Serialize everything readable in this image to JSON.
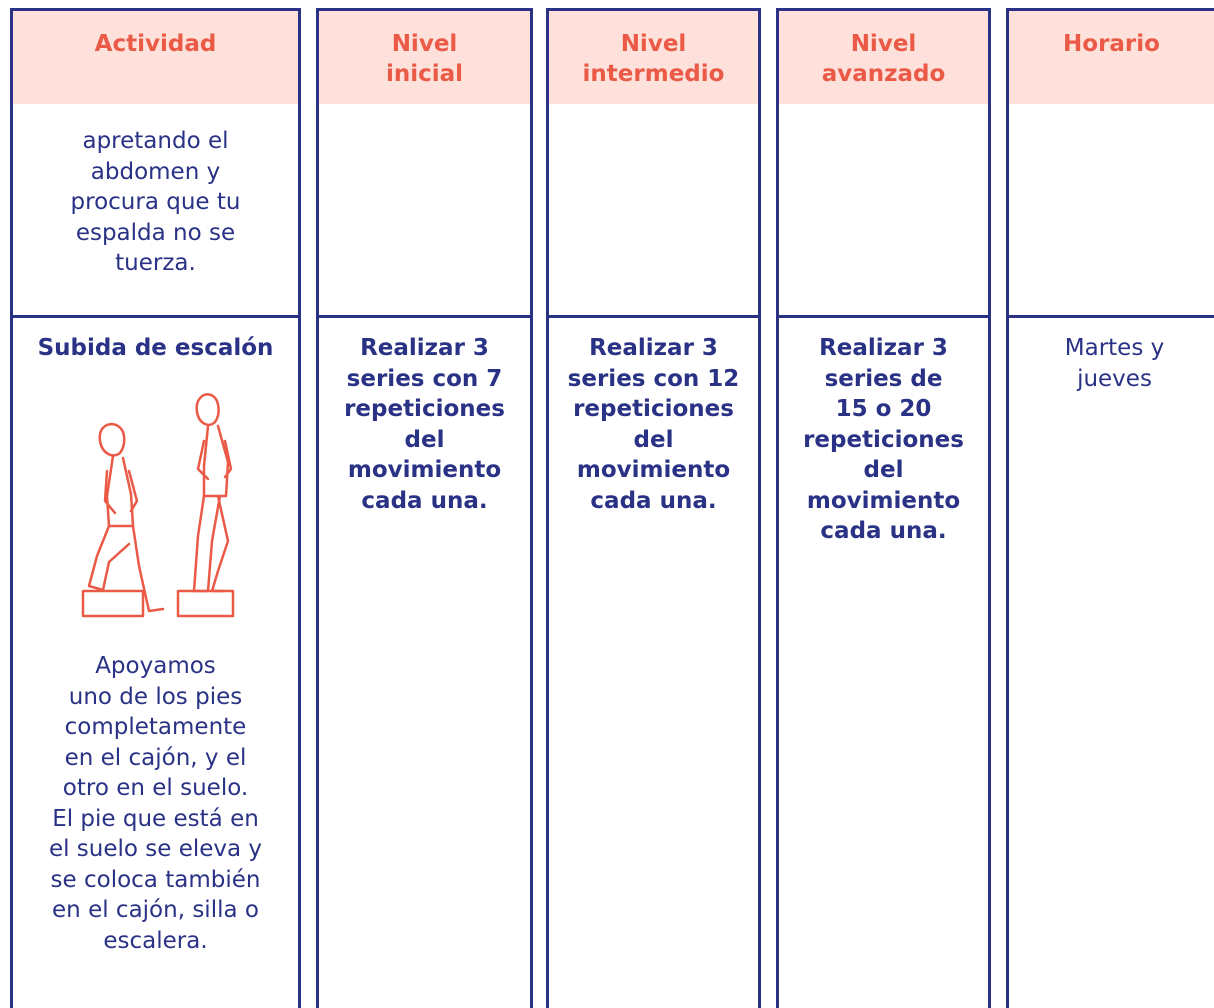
{
  "table": {
    "header": [
      [
        "Actividad"
      ],
      [
        "Nivel",
        "inicial"
      ],
      [
        "Nivel",
        "intermedio"
      ],
      [
        "Nivel",
        "avanzado"
      ],
      [
        "Horario"
      ]
    ],
    "rows": [
      {
        "activity": [
          "apretando el",
          "abdomen y",
          "procura que tu",
          "espalda no se",
          "tuerza."
        ]
      },
      {
        "activity_title": [
          "Subida de escalón"
        ],
        "activity_description": [
          "Apoyamos",
          "uno de los pies",
          "completamente",
          "en el cajón, y el",
          "otro en el suelo.",
          "El pie que está en",
          "el suelo se eleva y",
          "se coloca también",
          "en el cajón, silla o",
          "escalera."
        ],
        "levels": [
          [
            "Realizar 3",
            "series con 7",
            "repeticiones",
            "del",
            "movimiento",
            "cada una."
          ],
          [
            "Realizar 3",
            "series con 12",
            "repeticiones",
            "del",
            "movimiento",
            "cada una."
          ],
          [
            "Realizar 3",
            "series de",
            "15 o 20",
            "repeticiones",
            "del",
            "movimiento",
            "cada una."
          ]
        ],
        "schedule": [
          "Martes y",
          "jueves"
        ]
      }
    ]
  }
}
